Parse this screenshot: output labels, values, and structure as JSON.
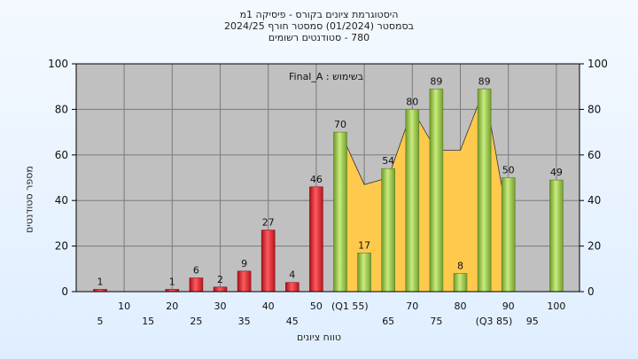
{
  "titles": {
    "line1": "היסטוגרמת ציונים בקורס - פיסיקה 1מ",
    "line2": "בסמסטר  (01/2024)  סמסטר חורף 2024/25",
    "line3": "780 - סטודנטים רשומים"
  },
  "chart_data": {
    "type": "bar",
    "xlabel": "טווח ציונים",
    "ylabel": "מספר סטודנטים",
    "ylim": [
      0,
      100
    ],
    "yticks": [
      0,
      20,
      40,
      60,
      80,
      100
    ],
    "annotation": "בשימוש : Final_A",
    "xtick_upper": [
      "10",
      "20",
      "30",
      "40",
      "50",
      "(Q1 55)",
      "70",
      "80",
      "90",
      "100"
    ],
    "xtick_lower": [
      "5",
      "15",
      "25",
      "35",
      "45",
      "65",
      "75",
      "(Q3 85)",
      "95"
    ],
    "bars": [
      {
        "x": 5,
        "value": 1,
        "color": "red"
      },
      {
        "x": 10,
        "value": 0,
        "color": "red"
      },
      {
        "x": 15,
        "value": 0,
        "color": "red"
      },
      {
        "x": 20,
        "value": 1,
        "color": "red"
      },
      {
        "x": 25,
        "value": 6,
        "color": "red"
      },
      {
        "x": 30,
        "value": 2,
        "color": "red"
      },
      {
        "x": 35,
        "value": 9,
        "color": "red"
      },
      {
        "x": 40,
        "value": 27,
        "color": "red"
      },
      {
        "x": 45,
        "value": 4,
        "color": "red"
      },
      {
        "x": 50,
        "value": 46,
        "color": "red"
      },
      {
        "x": 55,
        "value": 70,
        "color": "green"
      },
      {
        "x": 60,
        "value": 17,
        "color": "green"
      },
      {
        "x": 65,
        "value": 54,
        "color": "green"
      },
      {
        "x": 70,
        "value": 80,
        "color": "green"
      },
      {
        "x": 75,
        "value": 89,
        "color": "green"
      },
      {
        "x": 80,
        "value": 8,
        "color": "green"
      },
      {
        "x": 85,
        "value": 89,
        "color": "green"
      },
      {
        "x": 90,
        "value": 50,
        "color": "green"
      },
      {
        "x": 100,
        "value": 49,
        "color": "green"
      }
    ],
    "area_series": {
      "x": [
        55,
        60,
        65,
        70,
        75,
        80,
        85,
        90
      ],
      "values": [
        70,
        47,
        50,
        80,
        62,
        62,
        89,
        30
      ]
    },
    "colors": {
      "plot_bg": "#c0c0c0",
      "red_bar": "#e8303a",
      "green_bar": "#9acb4f",
      "area": "#ffc94d"
    }
  }
}
